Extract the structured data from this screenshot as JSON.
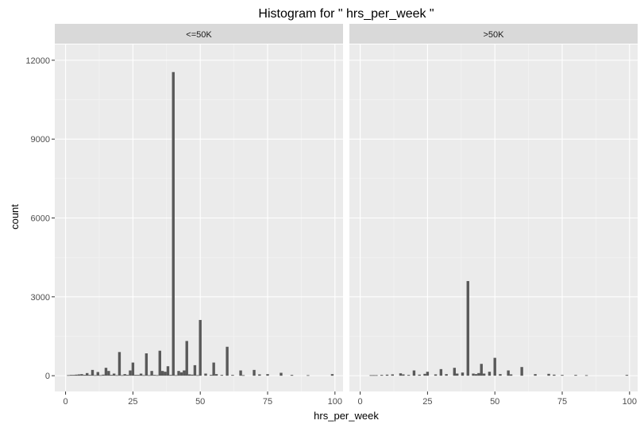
{
  "chart_data": {
    "type": "bar",
    "title": "Histogram for \" hrs_per_week \"",
    "xlabel": "hrs_per_week",
    "ylabel": "count",
    "xlim": [
      -4,
      103
    ],
    "ylim": [
      -600,
      12600
    ],
    "x_ticks": [
      0,
      25,
      50,
      75,
      100
    ],
    "y_ticks": [
      0,
      3000,
      6000,
      9000,
      12000
    ],
    "y_tick_labels": [
      "0",
      "3000",
      "6000",
      "9000",
      "12000"
    ],
    "grid": true,
    "bar_color": "#595959",
    "panel_background": "#ebebeb",
    "strip_background": "#d9d9d9",
    "panels": [
      {
        "label": "<=50K",
        "bins": [
          {
            "x": 1,
            "count": 20
          },
          {
            "x": 2,
            "count": 30
          },
          {
            "x": 3,
            "count": 30
          },
          {
            "x": 4,
            "count": 40
          },
          {
            "x": 5,
            "count": 50
          },
          {
            "x": 6,
            "count": 60
          },
          {
            "x": 7,
            "count": 30
          },
          {
            "x": 8,
            "count": 100
          },
          {
            "x": 9,
            "count": 30
          },
          {
            "x": 10,
            "count": 220
          },
          {
            "x": 11,
            "count": 20
          },
          {
            "x": 12,
            "count": 140
          },
          {
            "x": 13,
            "count": 20
          },
          {
            "x": 14,
            "count": 40
          },
          {
            "x": 15,
            "count": 300
          },
          {
            "x": 16,
            "count": 180
          },
          {
            "x": 17,
            "count": 30
          },
          {
            "x": 18,
            "count": 80
          },
          {
            "x": 19,
            "count": 20
          },
          {
            "x": 20,
            "count": 900
          },
          {
            "x": 21,
            "count": 20
          },
          {
            "x": 22,
            "count": 60
          },
          {
            "x": 23,
            "count": 30
          },
          {
            "x": 24,
            "count": 200
          },
          {
            "x": 25,
            "count": 500
          },
          {
            "x": 26,
            "count": 30
          },
          {
            "x": 27,
            "count": 30
          },
          {
            "x": 28,
            "count": 80
          },
          {
            "x": 29,
            "count": 20
          },
          {
            "x": 30,
            "count": 850
          },
          {
            "x": 31,
            "count": 20
          },
          {
            "x": 32,
            "count": 180
          },
          {
            "x": 33,
            "count": 30
          },
          {
            "x": 34,
            "count": 20
          },
          {
            "x": 35,
            "count": 950
          },
          {
            "x": 36,
            "count": 180
          },
          {
            "x": 37,
            "count": 150
          },
          {
            "x": 38,
            "count": 360
          },
          {
            "x": 39,
            "count": 30
          },
          {
            "x": 40,
            "count": 11550
          },
          {
            "x": 41,
            "count": 20
          },
          {
            "x": 42,
            "count": 180
          },
          {
            "x": 43,
            "count": 130
          },
          {
            "x": 44,
            "count": 200
          },
          {
            "x": 45,
            "count": 1320
          },
          {
            "x": 46,
            "count": 50
          },
          {
            "x": 47,
            "count": 40
          },
          {
            "x": 48,
            "count": 400
          },
          {
            "x": 49,
            "count": 20
          },
          {
            "x": 50,
            "count": 2120
          },
          {
            "x": 52,
            "count": 80
          },
          {
            "x": 54,
            "count": 30
          },
          {
            "x": 55,
            "count": 500
          },
          {
            "x": 56,
            "count": 60
          },
          {
            "x": 58,
            "count": 30
          },
          {
            "x": 60,
            "count": 1100
          },
          {
            "x": 62,
            "count": 30
          },
          {
            "x": 65,
            "count": 200
          },
          {
            "x": 66,
            "count": 20
          },
          {
            "x": 70,
            "count": 220
          },
          {
            "x": 72,
            "count": 50
          },
          {
            "x": 75,
            "count": 60
          },
          {
            "x": 80,
            "count": 110
          },
          {
            "x": 84,
            "count": 30
          },
          {
            "x": 90,
            "count": 20
          },
          {
            "x": 99,
            "count": 60
          }
        ]
      },
      {
        "label": ">50K",
        "bins": [
          {
            "x": 4,
            "count": 20
          },
          {
            "x": 5,
            "count": 20
          },
          {
            "x": 6,
            "count": 20
          },
          {
            "x": 8,
            "count": 30
          },
          {
            "x": 10,
            "count": 40
          },
          {
            "x": 12,
            "count": 50
          },
          {
            "x": 15,
            "count": 90
          },
          {
            "x": 16,
            "count": 50
          },
          {
            "x": 18,
            "count": 30
          },
          {
            "x": 20,
            "count": 200
          },
          {
            "x": 22,
            "count": 40
          },
          {
            "x": 24,
            "count": 70
          },
          {
            "x": 25,
            "count": 150
          },
          {
            "x": 28,
            "count": 50
          },
          {
            "x": 30,
            "count": 250
          },
          {
            "x": 32,
            "count": 60
          },
          {
            "x": 35,
            "count": 300
          },
          {
            "x": 36,
            "count": 80
          },
          {
            "x": 38,
            "count": 120
          },
          {
            "x": 40,
            "count": 3600
          },
          {
            "x": 42,
            "count": 80
          },
          {
            "x": 43,
            "count": 60
          },
          {
            "x": 44,
            "count": 100
          },
          {
            "x": 45,
            "count": 450
          },
          {
            "x": 46,
            "count": 80
          },
          {
            "x": 48,
            "count": 150
          },
          {
            "x": 50,
            "count": 680
          },
          {
            "x": 52,
            "count": 60
          },
          {
            "x": 55,
            "count": 200
          },
          {
            "x": 56,
            "count": 50
          },
          {
            "x": 60,
            "count": 330
          },
          {
            "x": 65,
            "count": 60
          },
          {
            "x": 70,
            "count": 70
          },
          {
            "x": 72,
            "count": 40
          },
          {
            "x": 75,
            "count": 30
          },
          {
            "x": 80,
            "count": 30
          },
          {
            "x": 84,
            "count": 20
          },
          {
            "x": 99,
            "count": 30
          }
        ]
      }
    ]
  }
}
